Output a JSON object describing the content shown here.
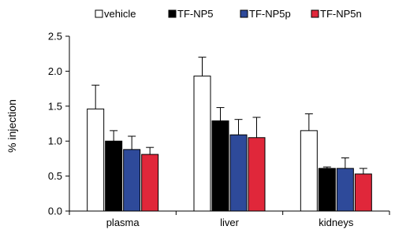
{
  "chart_data": {
    "type": "bar",
    "categories": [
      "plasma",
      "liver",
      "kidneys"
    ],
    "ylabel": "% injection",
    "xlabel": "",
    "ylim": [
      0,
      2.5
    ],
    "yticks": [
      "0.0",
      "0.5",
      "1.0",
      "1.5",
      "2.0",
      "2.5"
    ],
    "grid": false,
    "legend_position": "top",
    "error_bars": "upper",
    "series": [
      {
        "name": "vehicle",
        "color": "#ffffff",
        "values": [
          1.46,
          1.93,
          1.15
        ],
        "errors": [
          0.34,
          0.27,
          0.24
        ]
      },
      {
        "name": "TF-NP5",
        "color": "#000000",
        "values": [
          1.0,
          1.29,
          0.61
        ],
        "errors": [
          0.15,
          0.19,
          0.02
        ]
      },
      {
        "name": "TF-NP5p",
        "color": "#2e4a9a",
        "values": [
          0.88,
          1.09,
          0.61
        ],
        "errors": [
          0.19,
          0.22,
          0.15
        ]
      },
      {
        "name": "TF-NP5n",
        "color": "#e0273a",
        "values": [
          0.81,
          1.05,
          0.53
        ],
        "errors": [
          0.1,
          0.29,
          0.08
        ]
      }
    ]
  }
}
